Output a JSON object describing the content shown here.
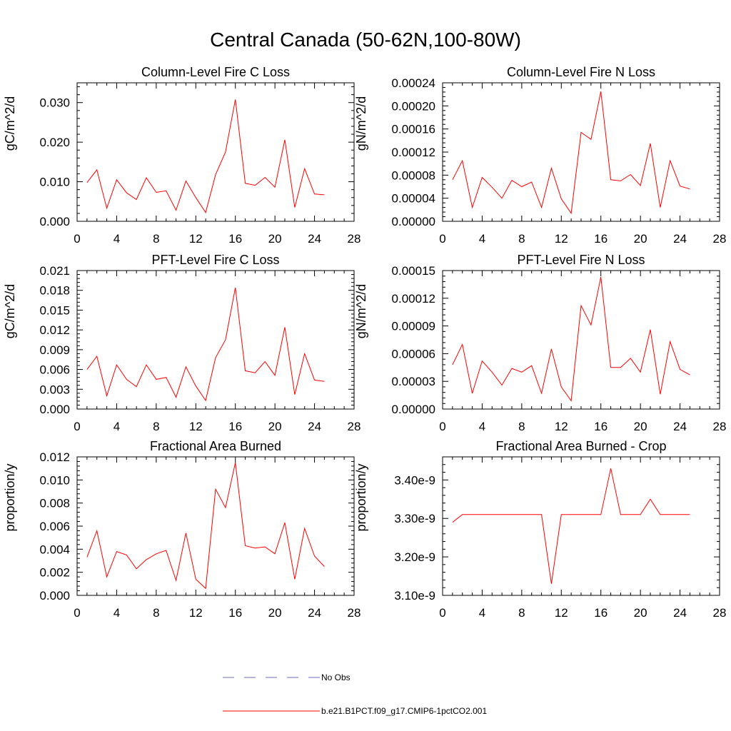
{
  "title": "Central Canada (50-62N,100-80W)",
  "colors": {
    "model": "#ff0000",
    "obs": "#6a6ab8",
    "axis": "#000000"
  },
  "legend": {
    "items": [
      {
        "label": "No Obs",
        "style": "dashed",
        "color": "#6a6ab8"
      },
      {
        "label": "b.e21.B1PCT.f09_g17.CMIP6-1pctCO2.001",
        "style": "solid",
        "color": "#ff0000"
      }
    ]
  },
  "chart_data": [
    {
      "type": "line",
      "title": "Column-Level Fire C Loss",
      "ylabel": "gC/m^2/d",
      "xlim": [
        0,
        28
      ],
      "ylim": [
        0,
        0.035
      ],
      "xticks": [
        0,
        4,
        8,
        12,
        16,
        20,
        24,
        28
      ],
      "yticks": [
        0,
        0.01,
        0.02,
        0.03
      ],
      "ytick_labels": [
        "0.000",
        "0.010",
        "0.020",
        "0.030"
      ],
      "series": [
        {
          "color": "#ff0000",
          "x": [
            1,
            2,
            3,
            4,
            5,
            6,
            7,
            8,
            9,
            10,
            11,
            12,
            13,
            14,
            15,
            16,
            17,
            18,
            19,
            20,
            21,
            22,
            23,
            24,
            25
          ],
          "values": [
            0.0098,
            0.013,
            0.0033,
            0.0105,
            0.0072,
            0.0055,
            0.011,
            0.0073,
            0.0077,
            0.0028,
            0.0102,
            0.006,
            0.0022,
            0.0118,
            0.0175,
            0.0308,
            0.0096,
            0.0091,
            0.0111,
            0.0086,
            0.0206,
            0.0035,
            0.0133,
            0.0069,
            0.0067
          ]
        }
      ]
    },
    {
      "type": "line",
      "title": "Column-Level Fire N Loss",
      "ylabel": "gN/m^2/d",
      "xlim": [
        0,
        28
      ],
      "ylim": [
        0,
        0.00024
      ],
      "xticks": [
        0,
        4,
        8,
        12,
        16,
        20,
        24,
        28
      ],
      "yticks": [
        0,
        4e-05,
        8e-05,
        0.00012,
        0.00016,
        0.0002,
        0.00024
      ],
      "ytick_labels": [
        "0.00000",
        "0.00004",
        "0.00008",
        "0.00012",
        "0.00016",
        "0.00020",
        "0.00024"
      ],
      "series": [
        {
          "color": "#ff0000",
          "x": [
            1,
            2,
            3,
            4,
            5,
            6,
            7,
            8,
            9,
            10,
            11,
            12,
            13,
            14,
            15,
            16,
            17,
            18,
            19,
            20,
            21,
            22,
            23,
            24,
            25
          ],
          "values": [
            7.2e-05,
            0.000105,
            2.4e-05,
            7.6e-05,
            5.9e-05,
            4e-05,
            7.1e-05,
            6e-05,
            6.8e-05,
            2.4e-05,
            9.2e-05,
            3.9e-05,
            1.4e-05,
            0.000154,
            0.000142,
            0.000225,
            7.2e-05,
            7e-05,
            8.1e-05,
            6.2e-05,
            0.000135,
            2.4e-05,
            0.000105,
            6.1e-05,
            5.6e-05
          ]
        }
      ]
    },
    {
      "type": "line",
      "title": "PFT-Level Fire C Loss",
      "ylabel": "gC/m^2/d",
      "xlim": [
        0,
        28
      ],
      "ylim": [
        0,
        0.021
      ],
      "xticks": [
        0,
        4,
        8,
        12,
        16,
        20,
        24,
        28
      ],
      "yticks": [
        0,
        0.003,
        0.006,
        0.009,
        0.012,
        0.015,
        0.018,
        0.021
      ],
      "ytick_labels": [
        "0.000",
        "0.003",
        "0.006",
        "0.009",
        "0.012",
        "0.015",
        "0.018",
        "0.021"
      ],
      "series": [
        {
          "color": "#ff0000",
          "x": [
            1,
            2,
            3,
            4,
            5,
            6,
            7,
            8,
            9,
            10,
            11,
            12,
            13,
            14,
            15,
            16,
            17,
            18,
            19,
            20,
            21,
            22,
            23,
            24,
            25
          ],
          "values": [
            0.006,
            0.008,
            0.002,
            0.0067,
            0.0045,
            0.0034,
            0.0067,
            0.0045,
            0.0048,
            0.0018,
            0.0064,
            0.0035,
            0.0013,
            0.0078,
            0.0105,
            0.0184,
            0.0058,
            0.0055,
            0.0072,
            0.0051,
            0.0124,
            0.0022,
            0.0084,
            0.0044,
            0.0042
          ]
        }
      ]
    },
    {
      "type": "line",
      "title": "PFT-Level Fire N Loss",
      "ylabel": "gN/m^2/d",
      "xlim": [
        0,
        28
      ],
      "ylim": [
        0,
        0.00015
      ],
      "xticks": [
        0,
        4,
        8,
        12,
        16,
        20,
        24,
        28
      ],
      "yticks": [
        0,
        3e-05,
        6e-05,
        9e-05,
        0.00012,
        0.00015
      ],
      "ytick_labels": [
        "0.00000",
        "0.00003",
        "0.00006",
        "0.00009",
        "0.00012",
        "0.00015"
      ],
      "series": [
        {
          "color": "#ff0000",
          "x": [
            1,
            2,
            3,
            4,
            5,
            6,
            7,
            8,
            9,
            10,
            11,
            12,
            13,
            14,
            15,
            16,
            17,
            18,
            19,
            20,
            21,
            22,
            23,
            24,
            25
          ],
          "values": [
            4.8e-05,
            7e-05,
            1.7e-05,
            5.2e-05,
            4e-05,
            2.6e-05,
            4.4e-05,
            4e-05,
            4.7e-05,
            1.7e-05,
            6.5e-05,
            2.4e-05,
            9e-06,
            0.000112,
            9.1e-05,
            0.000143,
            4.5e-05,
            4.5e-05,
            5.5e-05,
            4e-05,
            8.6e-05,
            1.6e-05,
            7.3e-05,
            4.3e-05,
            3.7e-05
          ]
        }
      ]
    },
    {
      "type": "line",
      "title": "Fractional Area Burned",
      "ylabel": "proportion/y",
      "xlim": [
        0,
        28
      ],
      "ylim": [
        0,
        0.012
      ],
      "xticks": [
        0,
        4,
        8,
        12,
        16,
        20,
        24,
        28
      ],
      "yticks": [
        0,
        0.002,
        0.004,
        0.006,
        0.008,
        0.01,
        0.012
      ],
      "ytick_labels": [
        "0.000",
        "0.002",
        "0.004",
        "0.006",
        "0.008",
        "0.010",
        "0.012"
      ],
      "series": [
        {
          "color": "#ff0000",
          "x": [
            1,
            2,
            3,
            4,
            5,
            6,
            7,
            8,
            9,
            10,
            11,
            12,
            13,
            14,
            15,
            16,
            17,
            18,
            19,
            20,
            21,
            22,
            23,
            24,
            25
          ],
          "values": [
            0.0033,
            0.0056,
            0.0016,
            0.0038,
            0.0035,
            0.0023,
            0.0031,
            0.0036,
            0.0039,
            0.0013,
            0.0054,
            0.0014,
            0.0006,
            0.0092,
            0.0076,
            0.0115,
            0.0043,
            0.0041,
            0.0042,
            0.0036,
            0.0063,
            0.0014,
            0.0058,
            0.0034,
            0.0025
          ]
        }
      ]
    },
    {
      "type": "line",
      "title": "Fractional Area Burned - Crop",
      "ylabel": "proportion/y",
      "xlim": [
        0,
        28
      ],
      "ylim": [
        3.1e-09,
        3.46e-09
      ],
      "xticks": [
        0,
        4,
        8,
        12,
        16,
        20,
        24,
        28
      ],
      "yticks": [
        3.1e-09,
        3.2e-09,
        3.3e-09,
        3.4e-09
      ],
      "ytick_labels": [
        "3.10e-9",
        "3.20e-9",
        "3.30e-9",
        "3.40e-9"
      ],
      "series": [
        {
          "color": "#ff0000",
          "x": [
            1,
            2,
            3,
            4,
            5,
            6,
            7,
            8,
            9,
            10,
            11,
            12,
            13,
            14,
            15,
            16,
            17,
            18,
            19,
            20,
            21,
            22,
            23,
            24,
            25
          ],
          "values": [
            3.29e-09,
            3.31e-09,
            3.31e-09,
            3.31e-09,
            3.31e-09,
            3.31e-09,
            3.31e-09,
            3.31e-09,
            3.31e-09,
            3.31e-09,
            3.13e-09,
            3.31e-09,
            3.31e-09,
            3.31e-09,
            3.31e-09,
            3.31e-09,
            3.43e-09,
            3.31e-09,
            3.31e-09,
            3.31e-09,
            3.35e-09,
            3.31e-09,
            3.31e-09,
            3.31e-09,
            3.31e-09
          ]
        }
      ]
    }
  ]
}
